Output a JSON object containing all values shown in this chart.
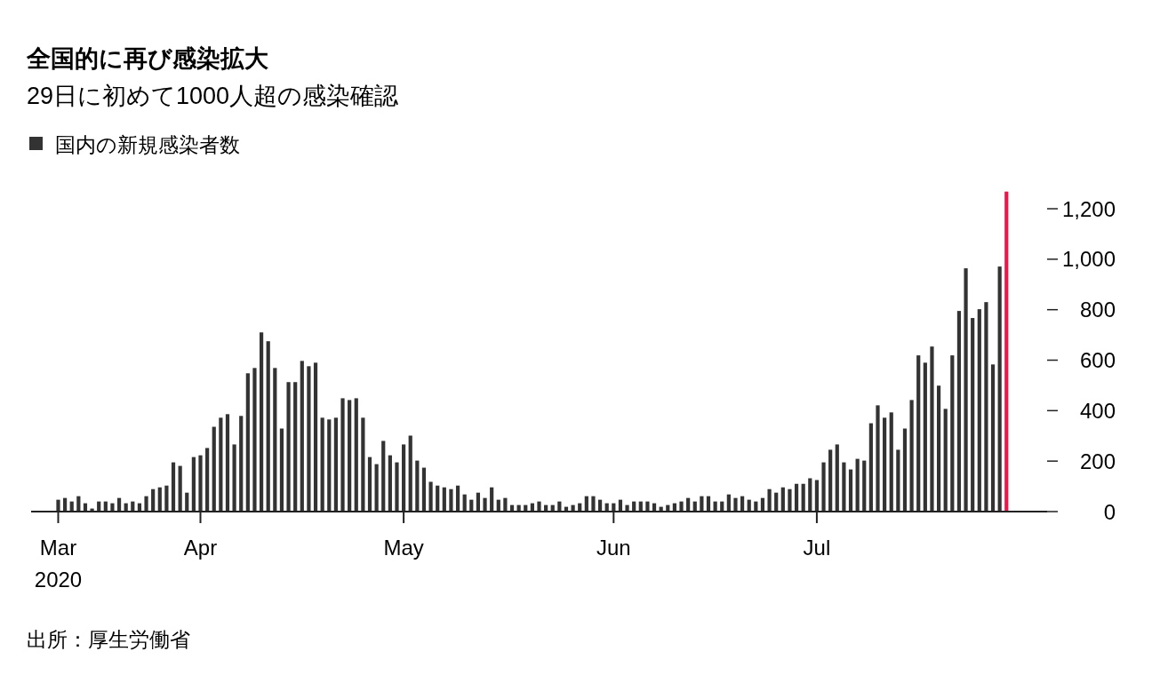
{
  "chart_data": {
    "type": "bar",
    "title": "全国的に再び感染拡大",
    "subtitle": "29日に初めて1000人超の感染確認",
    "annotations": [
      "出所：厚生労働省"
    ],
    "legend": "top left",
    "x": [
      "2020-03-11",
      "2020-03-12",
      "2020-03-13",
      "2020-03-14",
      "2020-03-15",
      "2020-03-16",
      "2020-03-17",
      "2020-03-18",
      "2020-03-19",
      "2020-03-20",
      "2020-03-21",
      "2020-03-22",
      "2020-03-23",
      "2020-03-24",
      "2020-03-25",
      "2020-03-26",
      "2020-03-27",
      "2020-03-28",
      "2020-03-29",
      "2020-03-30",
      "2020-03-31",
      "2020-04-01",
      "2020-04-02",
      "2020-04-03",
      "2020-04-04",
      "2020-04-05",
      "2020-04-06",
      "2020-04-07",
      "2020-04-08",
      "2020-04-09",
      "2020-04-10",
      "2020-04-11",
      "2020-04-12",
      "2020-04-13",
      "2020-04-14",
      "2020-04-15",
      "2020-04-16",
      "2020-04-17",
      "2020-04-18",
      "2020-04-19",
      "2020-04-20",
      "2020-04-21",
      "2020-04-22",
      "2020-04-23",
      "2020-04-24",
      "2020-04-25",
      "2020-04-26",
      "2020-04-27",
      "2020-04-28",
      "2020-04-29",
      "2020-04-30",
      "2020-05-01",
      "2020-05-02",
      "2020-05-03",
      "2020-05-04",
      "2020-05-05",
      "2020-05-06",
      "2020-05-07",
      "2020-05-08",
      "2020-05-09",
      "2020-05-10",
      "2020-05-11",
      "2020-05-12",
      "2020-05-13",
      "2020-05-14",
      "2020-05-15",
      "2020-05-16",
      "2020-05-17",
      "2020-05-18",
      "2020-05-19",
      "2020-05-20",
      "2020-05-21",
      "2020-05-22",
      "2020-05-23",
      "2020-05-24",
      "2020-05-25",
      "2020-05-26",
      "2020-05-27",
      "2020-05-28",
      "2020-05-29",
      "2020-05-30",
      "2020-05-31",
      "2020-06-01",
      "2020-06-02",
      "2020-06-03",
      "2020-06-04",
      "2020-06-05",
      "2020-06-06",
      "2020-06-07",
      "2020-06-08",
      "2020-06-09",
      "2020-06-10",
      "2020-06-11",
      "2020-06-12",
      "2020-06-13",
      "2020-06-14",
      "2020-06-15",
      "2020-06-16",
      "2020-06-17",
      "2020-06-18",
      "2020-06-19",
      "2020-06-20",
      "2020-06-21",
      "2020-06-22",
      "2020-06-23",
      "2020-06-24",
      "2020-06-25",
      "2020-06-26",
      "2020-06-27",
      "2020-06-28",
      "2020-06-29",
      "2020-06-30",
      "2020-07-01",
      "2020-07-02",
      "2020-07-03",
      "2020-07-04",
      "2020-07-05",
      "2020-07-06",
      "2020-07-07",
      "2020-07-08",
      "2020-07-09",
      "2020-07-10",
      "2020-07-11",
      "2020-07-12",
      "2020-07-13",
      "2020-07-14",
      "2020-07-15",
      "2020-07-16",
      "2020-07-17",
      "2020-07-18",
      "2020-07-19",
      "2020-07-20",
      "2020-07-21",
      "2020-07-22",
      "2020-07-23",
      "2020-07-24",
      "2020-07-25",
      "2020-07-26",
      "2020-07-27",
      "2020-07-28",
      "2020-07-29"
    ],
    "series": [
      {
        "name": "国内の新規感染者数",
        "color": "#333333",
        "values": [
          47,
          54,
          40,
          61,
          33,
          12,
          40,
          40,
          33,
          54,
          33,
          40,
          33,
          61,
          89,
          96,
          103,
          195,
          181,
          75,
          216,
          223,
          252,
          336,
          372,
          386,
          266,
          379,
          548,
          569,
          710,
          675,
          569,
          329,
          513,
          513,
          597,
          576,
          590,
          372,
          365,
          372,
          449,
          442,
          449,
          372,
          216,
          188,
          280,
          223,
          195,
          266,
          301,
          202,
          174,
          118,
          103,
          96,
          89,
          103,
          68,
          47,
          75,
          54,
          96,
          47,
          54,
          26,
          26,
          26,
          33,
          40,
          26,
          26,
          40,
          19,
          26,
          33,
          61,
          61,
          47,
          33,
          33,
          47,
          26,
          40,
          40,
          40,
          33,
          19,
          26,
          33,
          40,
          54,
          40,
          61,
          61,
          40,
          40,
          68,
          54,
          61,
          47,
          40,
          54,
          89,
          75,
          96,
          89,
          110,
          110,
          132,
          125,
          195,
          245,
          266,
          195,
          167,
          209,
          202,
          350,
          421,
          372,
          393,
          245,
          329,
          442,
          619,
          590,
          654,
          499,
          407,
          619,
          795,
          964,
          767,
          802,
          830,
          583,
          971,
          1268
        ],
        "colors": [
          "#333333",
          "#333333",
          "#333333",
          "#333333",
          "#333333",
          "#333333",
          "#333333",
          "#333333",
          "#333333",
          "#333333",
          "#333333",
          "#333333",
          "#333333",
          "#333333",
          "#333333",
          "#333333",
          "#333333",
          "#333333",
          "#333333",
          "#333333",
          "#333333",
          "#333333",
          "#333333",
          "#333333",
          "#333333",
          "#333333",
          "#333333",
          "#333333",
          "#333333",
          "#333333",
          "#333333",
          "#333333",
          "#333333",
          "#333333",
          "#333333",
          "#333333",
          "#333333",
          "#333333",
          "#333333",
          "#333333",
          "#333333",
          "#333333",
          "#333333",
          "#333333",
          "#333333",
          "#333333",
          "#333333",
          "#333333",
          "#333333",
          "#333333",
          "#333333",
          "#333333",
          "#333333",
          "#333333",
          "#333333",
          "#333333",
          "#333333",
          "#333333",
          "#333333",
          "#333333",
          "#333333",
          "#333333",
          "#333333",
          "#333333",
          "#333333",
          "#333333",
          "#333333",
          "#333333",
          "#333333",
          "#333333",
          "#333333",
          "#333333",
          "#333333",
          "#333333",
          "#333333",
          "#333333",
          "#333333",
          "#333333",
          "#333333",
          "#333333",
          "#333333",
          "#333333",
          "#333333",
          "#333333",
          "#333333",
          "#333333",
          "#333333",
          "#333333",
          "#333333",
          "#333333",
          "#333333",
          "#333333",
          "#333333",
          "#333333",
          "#333333",
          "#333333",
          "#333333",
          "#333333",
          "#333333",
          "#333333",
          "#333333",
          "#333333",
          "#333333",
          "#333333",
          "#333333",
          "#333333",
          "#333333",
          "#333333",
          "#333333",
          "#333333",
          "#333333",
          "#333333",
          "#333333",
          "#333333",
          "#333333",
          "#333333",
          "#333333",
          "#333333",
          "#333333",
          "#333333",
          "#333333",
          "#333333",
          "#333333",
          "#333333",
          "#333333",
          "#333333",
          "#333333",
          "#333333",
          "#333333",
          "#333333",
          "#333333",
          "#333333",
          "#333333",
          "#333333",
          "#333333",
          "#333333",
          "#333333",
          "#333333",
          "#333333",
          "#333333",
          "#e8194a"
        ]
      }
    ],
    "xlim": [
      "2020-03-07",
      "2020-08-04"
    ],
    "xticks": [
      {
        "value": "2020-03-11",
        "label": "Mar\n2020"
      },
      {
        "value": "2020-04-01",
        "label": "Apr"
      },
      {
        "value": "2020-05-01",
        "label": "May"
      },
      {
        "value": "2020-06-01",
        "label": "Jun"
      },
      {
        "value": "2020-07-01",
        "label": "Jul"
      }
    ],
    "ylim": [
      0,
      1268
    ],
    "yticks": [
      {
        "value": 1200,
        "label": "1,200"
      },
      {
        "value": 1000,
        "label": "1,000"
      },
      800,
      600,
      400,
      200,
      0
    ]
  }
}
